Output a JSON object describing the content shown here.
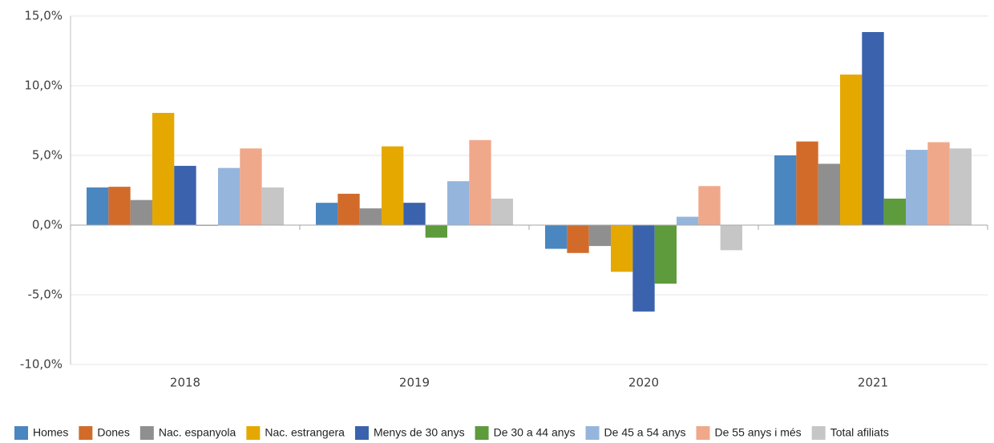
{
  "chart_data": {
    "type": "bar",
    "categories": [
      "2018",
      "2019",
      "2020",
      "2021"
    ],
    "series": [
      {
        "name": "Homes",
        "color": "#4a86c0",
        "values": [
          2.7,
          1.6,
          -1.7,
          5.0
        ]
      },
      {
        "name": "Dones",
        "color": "#d26b2a",
        "values": [
          2.75,
          2.25,
          -2.0,
          6.0
        ]
      },
      {
        "name": "Nac. espanyola",
        "color": "#8f8f8f",
        "values": [
          1.8,
          1.2,
          -1.5,
          4.4
        ]
      },
      {
        "name": "Nac. estrangera",
        "color": "#e5a800",
        "values": [
          8.05,
          5.65,
          -3.35,
          10.8
        ]
      },
      {
        "name": "Menys de 30 anys",
        "color": "#3a62ad",
        "values": [
          4.25,
          1.6,
          -6.2,
          13.85
        ]
      },
      {
        "name": "De 30 a 44 anys",
        "color": "#5e9b3c",
        "values": [
          -0.05,
          -0.9,
          -4.2,
          1.9
        ]
      },
      {
        "name": "De 45 a 54 anys",
        "color": "#96b5dc",
        "values": [
          4.1,
          3.15,
          0.6,
          5.4
        ]
      },
      {
        "name": "De 55 anys i més",
        "color": "#f0a88a",
        "values": [
          5.5,
          6.1,
          2.8,
          5.95
        ]
      },
      {
        "name": "Total afiliats",
        "color": "#c6c6c6",
        "values": [
          2.7,
          1.9,
          -1.8,
          5.5
        ]
      }
    ],
    "ylim": [
      -10,
      15
    ],
    "yticks": [
      {
        "value": -10,
        "label": "-10,0%"
      },
      {
        "value": -5,
        "label": "-5,0%"
      },
      {
        "value": 0,
        "label": "0,0%"
      },
      {
        "value": 5,
        "label": "5,0%"
      },
      {
        "value": 10,
        "label": "10,0%"
      },
      {
        "value": 15,
        "label": "15,0%"
      }
    ],
    "grid": true,
    "legend": "bottom"
  }
}
